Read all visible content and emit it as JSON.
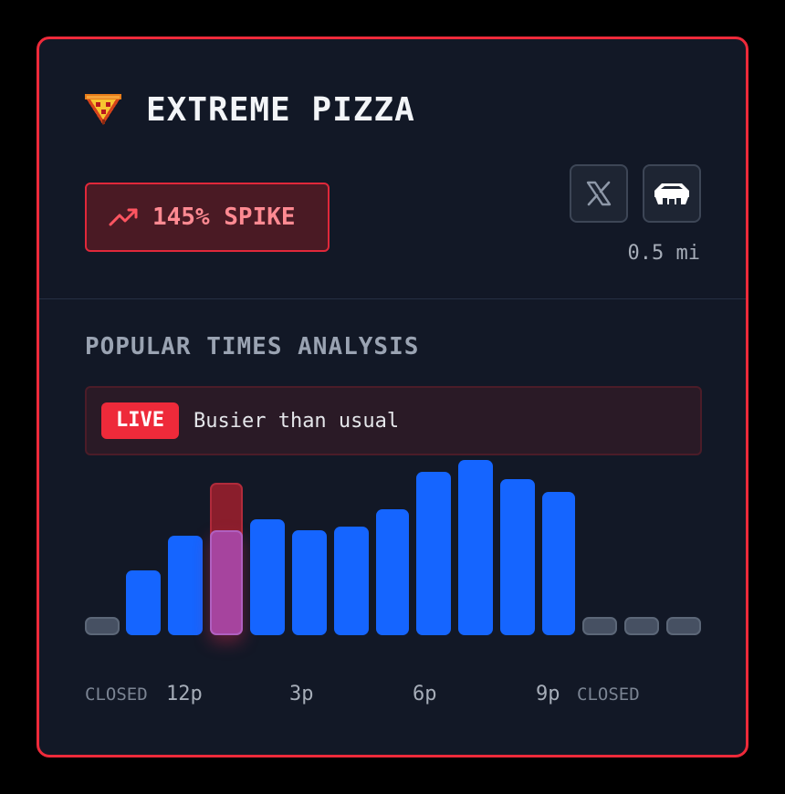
{
  "header": {
    "title": "EXTREME PIZZA",
    "logo_icon": "pizza-slice-icon"
  },
  "spike": {
    "label": "145% SPIKE",
    "icon": "trending-up-icon",
    "color": "#ff8a92"
  },
  "actions": {
    "x_icon": "x-logo-icon",
    "venue_icon": "building-icon",
    "distance": "0.5 mi"
  },
  "popular_times": {
    "title": "POPULAR TIMES ANALYSIS",
    "live_badge": "LIVE",
    "live_status": "Busier than usual",
    "closed_label": "CLOSED",
    "time_labels": [
      "12p",
      "3p",
      "6p",
      "9p"
    ],
    "bars": [
      {
        "state": "closed",
        "value": 0
      },
      {
        "state": "open",
        "value": 37
      },
      {
        "state": "open",
        "value": 57
      },
      {
        "state": "current",
        "value": 60,
        "usual": 87
      },
      {
        "state": "open",
        "value": 66
      },
      {
        "state": "open",
        "value": 60
      },
      {
        "state": "open",
        "value": 62
      },
      {
        "state": "open",
        "value": 72
      },
      {
        "state": "open",
        "value": 93
      },
      {
        "state": "open",
        "value": 100
      },
      {
        "state": "open",
        "value": 89
      },
      {
        "state": "open",
        "value": 82
      },
      {
        "state": "closed",
        "value": 0
      },
      {
        "state": "closed",
        "value": 0
      },
      {
        "state": "closed",
        "value": 0
      }
    ],
    "colors": {
      "open": "#1565ff",
      "current": "#a848a8",
      "usual": "#8a1e2c",
      "closed": "#465062"
    }
  }
}
